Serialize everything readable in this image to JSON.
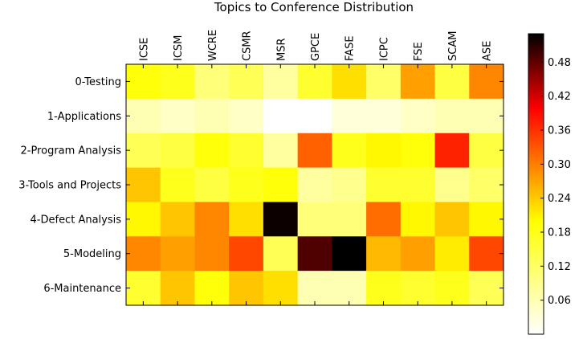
{
  "chart_data": {
    "type": "heatmap",
    "title": "Topics to Conference Distribution",
    "colormap": "hot_r",
    "columns": [
      "ICSE",
      "ICSM",
      "WCRE",
      "CSMR",
      "MSR",
      "GPCE",
      "FASE",
      "ICPC",
      "FSE",
      "SCAM",
      "ASE"
    ],
    "rows": [
      "0-Testing",
      "1-Applications",
      "2-Program Analysis",
      "3-Tools and Projects",
      "4-Defect Analysis",
      "5-Modeling",
      "6-Maintenance"
    ],
    "values": [
      [
        0.13,
        0.12,
        0.07,
        0.09,
        0.05,
        0.11,
        0.16,
        0.08,
        0.21,
        0.1,
        0.23
      ],
      [
        0.04,
        0.03,
        0.04,
        0.03,
        0.0,
        0.0,
        0.02,
        0.02,
        0.03,
        0.04,
        0.04
      ],
      [
        0.09,
        0.1,
        0.13,
        0.11,
        0.05,
        0.26,
        0.12,
        0.14,
        0.13,
        0.31,
        0.1
      ],
      [
        0.18,
        0.12,
        0.1,
        0.12,
        0.13,
        0.05,
        0.06,
        0.11,
        0.11,
        0.06,
        0.08
      ],
      [
        0.14,
        0.18,
        0.23,
        0.16,
        0.52,
        0.07,
        0.07,
        0.25,
        0.14,
        0.18,
        0.14
      ],
      [
        0.23,
        0.21,
        0.23,
        0.28,
        0.09,
        0.47,
        0.53,
        0.19,
        0.21,
        0.15,
        0.28
      ],
      [
        0.11,
        0.18,
        0.13,
        0.18,
        0.16,
        0.04,
        0.04,
        0.12,
        0.11,
        0.12,
        0.09
      ]
    ],
    "colorbar": {
      "range": [
        0,
        0.53
      ],
      "ticks": [
        0.06,
        0.12,
        0.18,
        0.24,
        0.3,
        0.36,
        0.42,
        0.48
      ],
      "tick_labels": [
        "0.06",
        "0.12",
        "0.18",
        "0.24",
        "0.30",
        "0.36",
        "0.42",
        "0.48"
      ]
    }
  }
}
